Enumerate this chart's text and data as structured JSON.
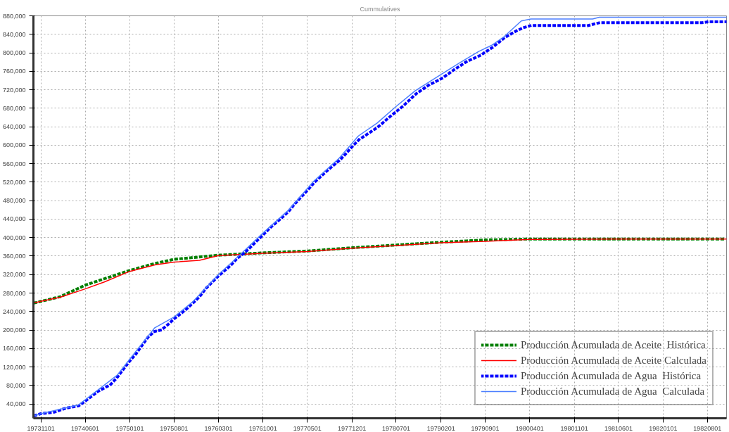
{
  "chart_data": {
    "type": "line",
    "title": "Cummulatives",
    "xlim": [
      "1973-09-26",
      "1982-11-01"
    ],
    "ylim": [
      9000,
      880000
    ],
    "xticks": [
      {
        "value": "1973-11-01",
        "label": "19731101"
      },
      {
        "value": "1974-06-01",
        "label": "19740601"
      },
      {
        "value": "1975-01-01",
        "label": "19750101"
      },
      {
        "value": "1975-08-01",
        "label": "19750801"
      },
      {
        "value": "1976-03-01",
        "label": "19760301"
      },
      {
        "value": "1976-10-01",
        "label": "19761001"
      },
      {
        "value": "1977-05-01",
        "label": "19770501"
      },
      {
        "value": "1977-12-01",
        "label": "19771201"
      },
      {
        "value": "1978-07-01",
        "label": "19780701"
      },
      {
        "value": "1979-02-01",
        "label": "19790201"
      },
      {
        "value": "1979-09-01",
        "label": "19790901"
      },
      {
        "value": "1980-04-01",
        "label": "19800401"
      },
      {
        "value": "1980-11-01",
        "label": "19801101"
      },
      {
        "value": "1981-06-01",
        "label": "19810601"
      },
      {
        "value": "1982-01-01",
        "label": "19820101"
      },
      {
        "value": "1982-08-01",
        "label": "19820801"
      }
    ],
    "yticks": [
      {
        "value": 40000,
        "label": "40,000"
      },
      {
        "value": 80000,
        "label": "80,000"
      },
      {
        "value": 120000,
        "label": "120,000"
      },
      {
        "value": 160000,
        "label": "160,000"
      },
      {
        "value": 200000,
        "label": "200,000"
      },
      {
        "value": 240000,
        "label": "240,000"
      },
      {
        "value": 280000,
        "label": "280,000"
      },
      {
        "value": 320000,
        "label": "320,000"
      },
      {
        "value": 360000,
        "label": "360,000"
      },
      {
        "value": 400000,
        "label": "400,000"
      },
      {
        "value": 440000,
        "label": "440,000"
      },
      {
        "value": 480000,
        "label": "480,000"
      },
      {
        "value": 520000,
        "label": "520,000"
      },
      {
        "value": 560000,
        "label": "560,000"
      },
      {
        "value": 600000,
        "label": "600,000"
      },
      {
        "value": 640000,
        "label": "640,000"
      },
      {
        "value": 680000,
        "label": "680,000"
      },
      {
        "value": 720000,
        "label": "720,000"
      },
      {
        "value": 760000,
        "label": "760,000"
      },
      {
        "value": 800000,
        "label": "800,000"
      },
      {
        "value": 840000,
        "label": "840,000"
      },
      {
        "value": 880000,
        "label": "880,000"
      }
    ],
    "grid": true,
    "legend": "bottom right",
    "series": [
      {
        "name": "Producción Acumulada de Aceite  Histórica",
        "color": "#007f00",
        "line_style": "dotted",
        "x": [
          "1973-10-04",
          "1973-11-01",
          "1974-02-01",
          "1974-06-01",
          "1974-09-01",
          "1975-01-01",
          "1975-05-01",
          "1975-08-01",
          "1976-03-01",
          "1976-10-01",
          "1977-05-01",
          "1977-12-01",
          "1978-07-01",
          "1979-02-01",
          "1979-09-01",
          "1980-04-01",
          "1981-05-01",
          "1982-11-01"
        ],
        "values": [
          259000,
          262000,
          272000,
          297000,
          311000,
          329000,
          344000,
          353000,
          362000,
          367000,
          371000,
          378000,
          384000,
          390000,
          395000,
          397000,
          397000,
          397000
        ]
      },
      {
        "name": "Producción Acumulada de Aceite Calculada",
        "color": "#ff0000",
        "line_style": "solid",
        "x": [
          "1973-10-04",
          "1973-11-01",
          "1974-02-01",
          "1974-06-01",
          "1974-09-01",
          "1975-01-01",
          "1975-05-01",
          "1975-08-01",
          "1975-12-01",
          "1976-03-01",
          "1976-10-01",
          "1977-05-01",
          "1977-12-01",
          "1978-07-01",
          "1979-02-01",
          "1979-09-01",
          "1980-04-01",
          "1981-05-01",
          "1982-11-01"
        ],
        "values": [
          259000,
          262000,
          271000,
          289000,
          304000,
          327000,
          341000,
          347000,
          351000,
          361000,
          366000,
          370000,
          377000,
          383000,
          389000,
          392000,
          396000,
          397000,
          397000
        ]
      },
      {
        "name": "Producción Acumulada de Agua  Histórica",
        "color": "#0000ff",
        "line_style": "dotted",
        "x": [
          "1973-10-04",
          "1973-11-01",
          "1974-01-01",
          "1974-03-01",
          "1974-05-01",
          "1974-06-01",
          "1974-08-01",
          "1974-10-01",
          "1974-11-01",
          "1974-12-01",
          "1975-01-01",
          "1975-02-01",
          "1975-03-01",
          "1975-04-01",
          "1975-05-01",
          "1975-06-01",
          "1975-07-01",
          "1975-08-01",
          "1975-09-01",
          "1975-10-01",
          "1975-11-01",
          "1975-12-01",
          "1976-01-01",
          "1976-02-01",
          "1976-03-01",
          "1976-04-01",
          "1976-05-01",
          "1976-06-01",
          "1976-07-01",
          "1976-08-01",
          "1976-09-01",
          "1976-10-01",
          "1976-11-01",
          "1976-12-01",
          "1977-01-01",
          "1977-02-01",
          "1977-03-04",
          "1977-05-07",
          "1977-06-07",
          "1977-08-07",
          "1977-10-07",
          "1977-12-07",
          "1978-01-04",
          "1978-04-04",
          "1978-06-07",
          "1978-08-04",
          "1978-10-04",
          "1978-12-04",
          "1979-02-07",
          "1979-04-04",
          "1979-06-04",
          "1979-08-07",
          "1979-10-04",
          "1979-12-04",
          "1980-02-04",
          "1980-03-07",
          "1980-04-07",
          "1981-01-07",
          "1981-03-01",
          "1982-07-04",
          "1982-08-07",
          "1982-11-01"
        ],
        "values": [
          15000,
          19000,
          22000,
          31000,
          36000,
          46000,
          67000,
          82000,
          97000,
          115000,
          133000,
          149000,
          167000,
          186000,
          197000,
          200000,
          211000,
          224000,
          235000,
          246000,
          259000,
          272000,
          290000,
          304000,
          317000,
          329000,
          341000,
          356000,
          366000,
          379000,
          393000,
          406000,
          420000,
          432000,
          444000,
          457000,
          474000,
          505000,
          521000,
          546000,
          569000,
          599000,
          612000,
          639000,
          664000,
          685000,
          711000,
          730000,
          745000,
          763000,
          781000,
          794000,
          811000,
          833000,
          849000,
          855000,
          859000,
          859000,
          865000,
          865000,
          867000,
          867000
        ]
      },
      {
        "name": "Producción Acumulada de Agua  Calculada",
        "color": "#4d7fff",
        "line_style": "solid",
        "x": [
          "1973-10-04",
          "1973-11-01",
          "1974-05-01",
          "1974-08-01",
          "1974-11-01",
          "1975-02-01",
          "1975-05-01",
          "1975-08-01",
          "1975-11-01",
          "1976-03-01",
          "1976-06-01",
          "1976-10-01",
          "1977-02-01",
          "1977-06-01",
          "1977-10-01",
          "1978-01-01",
          "1978-04-01",
          "1978-07-01",
          "1978-10-01",
          "1979-02-01",
          "1979-05-01",
          "1979-08-01",
          "1979-10-01",
          "1979-12-01",
          "1980-02-21",
          "1980-04-07",
          "1981-01-28",
          "1981-03-01",
          "1982-11-01"
        ],
        "values": [
          15000,
          19000,
          38000,
          70000,
          102000,
          155000,
          205000,
          228000,
          262000,
          320000,
          358000,
          410000,
          460000,
          522000,
          572000,
          620000,
          648000,
          684000,
          718000,
          753000,
          778000,
          803000,
          816000,
          835000,
          869000,
          873000,
          873000,
          877000,
          877000
        ]
      }
    ]
  }
}
